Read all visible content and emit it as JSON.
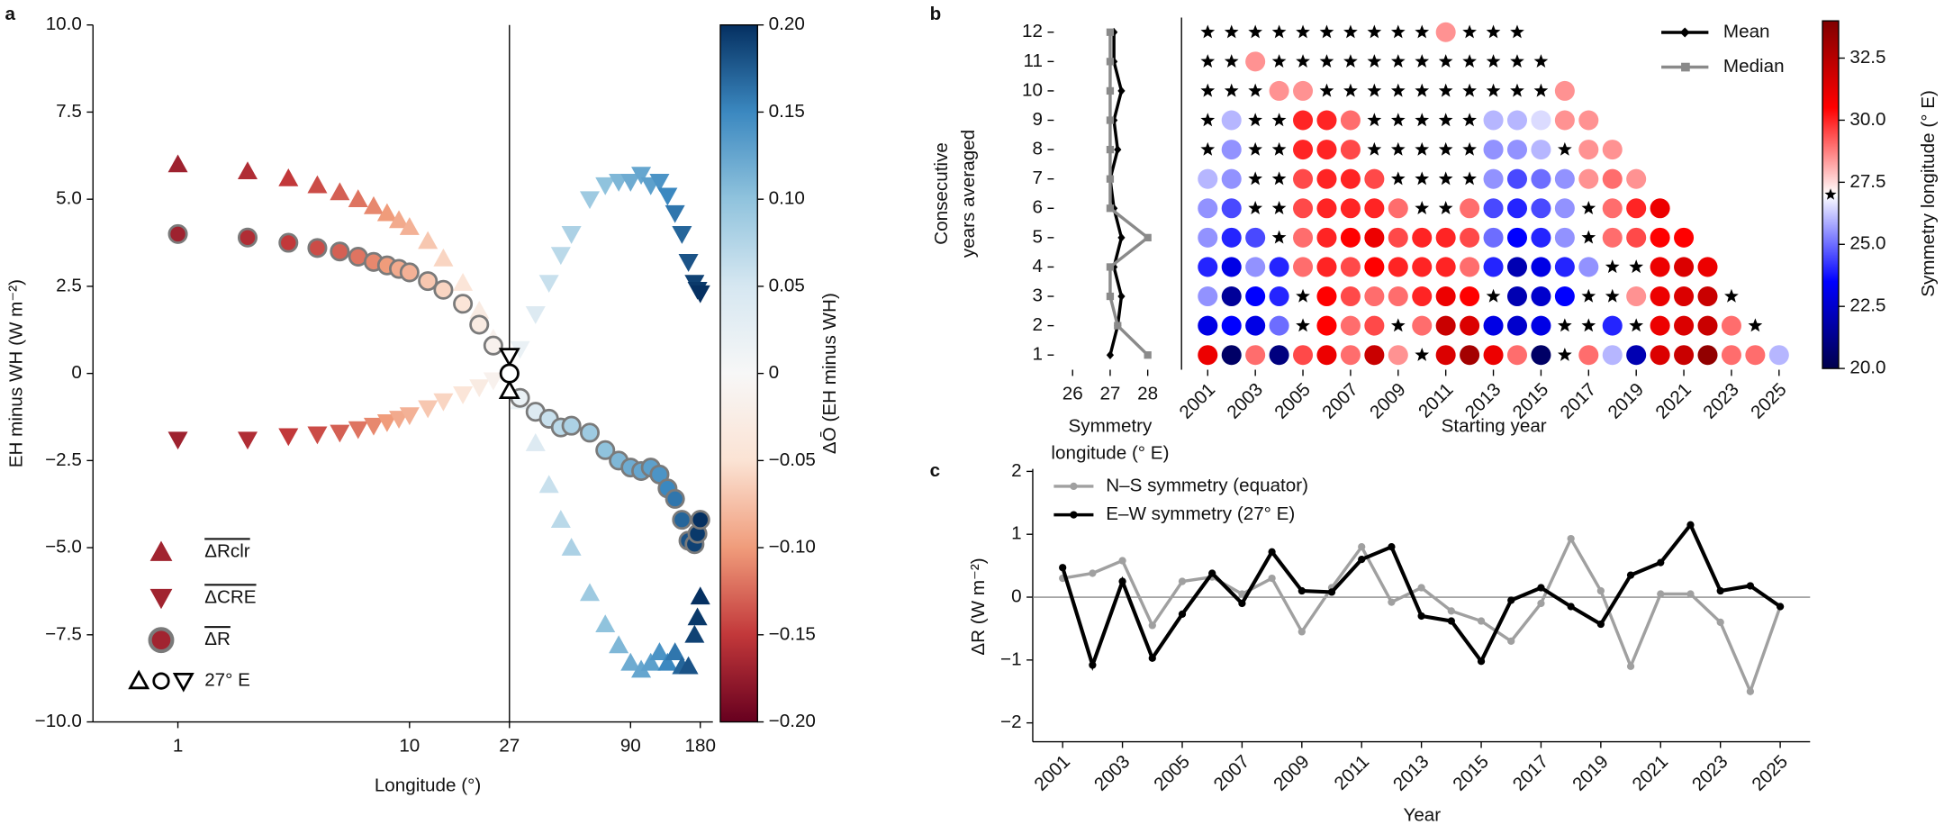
{
  "chart_data": [
    {
      "type": "scatter",
      "panel_label": "a",
      "xlabel": "Longitude (°)",
      "ylabel": "EH minus WH (W m⁻²)",
      "xscale": "log",
      "xlim": [
        0.43,
        204
      ],
      "xticks": [
        1,
        10,
        27,
        90,
        180
      ],
      "ylim": [
        -10,
        10
      ],
      "yticks": [
        {
          "value": 10,
          "label": "10.0"
        },
        7.5,
        {
          "value": 5,
          "label": "5.0"
        },
        2.5,
        0,
        {
          "value": -2.5,
          "label": "−2.5"
        },
        {
          "value": -5,
          "label": "−5.0"
        },
        {
          "value": -7.5,
          "label": "−7.5"
        },
        {
          "value": -10,
          "label": "−10.0"
        }
      ],
      "vline": 27,
      "x": [
        1,
        2,
        3,
        4,
        5,
        6,
        7,
        8,
        9,
        10,
        12,
        14,
        17,
        20,
        23,
        27,
        30,
        35,
        40,
        45,
        50,
        60,
        70,
        80,
        90,
        100,
        110,
        120,
        130,
        140,
        150,
        160,
        170,
        175,
        180
      ],
      "color_values": [
        -0.17,
        -0.16,
        -0.15,
        -0.14,
        -0.13,
        -0.12,
        -0.11,
        -0.1,
        -0.09,
        -0.085,
        -0.07,
        -0.06,
        -0.045,
        -0.03,
        -0.015,
        0,
        0.02,
        0.04,
        0.06,
        0.07,
        0.08,
        0.09,
        0.1,
        0.11,
        0.12,
        0.125,
        0.13,
        0.14,
        0.15,
        0.16,
        0.17,
        0.18,
        0.19,
        0.195,
        0.2
      ],
      "series": [
        {
          "name": "ΔRclr",
          "marker": "triangle-up",
          "values": [
            6.0,
            5.8,
            5.6,
            5.4,
            5.2,
            5.0,
            4.8,
            4.6,
            4.4,
            4.2,
            3.8,
            3.3,
            2.6,
            1.8,
            1.0,
            0,
            -0.8,
            -2.0,
            -3.2,
            -4.2,
            -5.0,
            -6.3,
            -7.2,
            -7.8,
            -8.3,
            -8.5,
            -8.3,
            -8.0,
            -8.3,
            -8.0,
            -8.4,
            -8.4,
            -7.5,
            -7.0,
            -6.4
          ]
        },
        {
          "name": "ΔCRE",
          "marker": "triangle-down",
          "values": [
            -1.9,
            -1.9,
            -1.8,
            -1.75,
            -1.7,
            -1.6,
            -1.5,
            -1.4,
            -1.3,
            -1.2,
            -1.0,
            -0.8,
            -0.6,
            -0.4,
            -0.2,
            0,
            0.7,
            1.7,
            2.6,
            3.4,
            4.0,
            5.0,
            5.4,
            5.5,
            5.5,
            5.7,
            5.4,
            5.5,
            5.1,
            4.6,
            4.0,
            3.2,
            2.6,
            2.4,
            2.3
          ]
        },
        {
          "name": "ΔR",
          "marker": "circle",
          "values": [
            4.0,
            3.9,
            3.75,
            3.6,
            3.5,
            3.35,
            3.2,
            3.1,
            3.0,
            2.9,
            2.65,
            2.4,
            2.0,
            1.4,
            0.8,
            0,
            -0.7,
            -1.1,
            -1.3,
            -1.55,
            -1.5,
            -1.7,
            -2.2,
            -2.5,
            -2.7,
            -2.8,
            -2.7,
            -2.9,
            -3.3,
            -3.6,
            -4.2,
            -4.8,
            -4.9,
            -4.6,
            -4.2
          ]
        }
      ],
      "reference": {
        "label": "27° E",
        "x": 27,
        "y": 0
      },
      "legend_position": "lower left",
      "colorbar": {
        "label": "ΔŌ (EH minus WH)",
        "lim": [
          -0.2,
          0.2
        ],
        "ticks": [
          {
            "value": 0.2,
            "label": "0.20"
          },
          0.15,
          {
            "value": 0.1,
            "label": "0.10"
          },
          0.05,
          0,
          {
            "value": -0.05,
            "label": "−0.05"
          },
          {
            "value": -0.1,
            "label": "−0.10"
          },
          {
            "value": -0.15,
            "label": "−0.15"
          },
          {
            "value": -0.2,
            "label": "−0.20"
          }
        ],
        "colormap": [
          "#67001f",
          "#c2383a",
          "#f09c7b",
          "#fbe3d4",
          "#f7f7f7",
          "#d6e7f1",
          "#90c3dd",
          "#3b88c0",
          "#053061"
        ]
      }
    },
    {
      "type": "profile",
      "panel_label": "b",
      "xlabel": [
        "Symmetry",
        "longitude (° E)"
      ],
      "ylabel": [
        "Consecutive",
        "years averaged"
      ],
      "xlim": [
        25.5,
        28.9
      ],
      "xticks": [
        26,
        27,
        28
      ],
      "ylim": [
        0.5,
        12.5
      ],
      "yticks": [
        1,
        2,
        3,
        4,
        5,
        6,
        7,
        8,
        9,
        10,
        11,
        12
      ],
      "y": [
        1,
        2,
        3,
        4,
        5,
        6,
        7,
        8,
        9,
        10,
        11,
        12
      ],
      "series": [
        {
          "name": "Mean",
          "color": "#000000",
          "marker": "diamond",
          "values": [
            27,
            27.2,
            27.3,
            27.1,
            27.3,
            27.1,
            27.0,
            27.2,
            27.1,
            27.3,
            27.1,
            27.1
          ]
        },
        {
          "name": "Median",
          "color": "#8a8a8a",
          "marker": "square",
          "values": [
            28,
            27.2,
            27,
            27,
            28,
            27,
            27,
            27,
            27,
            27,
            27,
            27
          ]
        }
      ],
      "legend_position": "upper right"
    },
    {
      "type": "dotmatrix",
      "xlabel": "Starting year",
      "xlim": [
        1999.9,
        2026.2
      ],
      "xticks": [
        2001,
        2003,
        2005,
        2007,
        2009,
        2011,
        2013,
        2015,
        2017,
        2019,
        2021,
        2023,
        2025
      ],
      "ylim": [
        0.5,
        12.5
      ],
      "x": [
        2001,
        2002,
        2003,
        2004,
        2005,
        2006,
        2007,
        2008,
        2009,
        2010,
        2011,
        2012,
        2013,
        2014,
        2015,
        2016,
        2017,
        2018,
        2019,
        2020,
        2021,
        2022,
        2023,
        2024,
        2025
      ],
      "y": [
        1,
        2,
        3,
        4,
        5,
        6,
        7,
        8,
        9,
        10,
        11,
        12
      ],
      "star_value": 27,
      "matrix": [
        [
          31,
          20.5,
          29,
          21,
          29.5,
          31,
          29,
          32,
          28.5,
          27,
          31.5,
          33,
          31,
          29,
          20.5,
          27,
          29,
          26,
          22,
          31.5,
          32,
          33.5,
          29,
          29,
          26
        ],
        [
          23,
          23.5,
          23,
          25,
          27,
          30.5,
          29,
          29.5,
          27,
          29,
          32,
          31.5,
          23,
          22.5,
          23,
          27,
          27,
          24,
          27,
          31,
          31.5,
          32,
          29,
          27,
          null
        ],
        [
          25.5,
          21.5,
          23.5,
          24,
          27,
          30.5,
          29.5,
          29,
          29,
          30,
          31,
          30.5,
          27,
          22,
          22.5,
          23.5,
          27,
          27,
          28.5,
          31,
          31.5,
          32,
          27,
          null,
          null
        ],
        [
          24,
          23,
          25.5,
          24,
          29,
          30,
          29.5,
          30.5,
          30,
          30,
          30,
          29,
          24,
          22,
          23,
          24,
          25.5,
          27,
          27,
          31,
          31.5,
          31,
          null,
          null,
          null
        ],
        [
          25.5,
          24,
          24.5,
          27,
          29,
          30,
          30.5,
          31,
          29.5,
          30,
          30,
          29.5,
          25,
          23.5,
          24,
          25.5,
          27,
          29,
          29.5,
          30.5,
          30.5,
          null,
          null,
          null,
          null
        ],
        [
          25.5,
          24.5,
          27,
          27,
          29.5,
          30,
          30,
          30,
          29,
          27,
          27,
          29,
          24.5,
          24,
          24.5,
          25.5,
          27,
          29,
          30,
          31,
          null,
          null,
          null,
          null,
          null
        ],
        [
          26,
          25.5,
          27,
          27,
          29.5,
          30,
          30,
          29.5,
          27,
          27,
          27,
          27,
          25.5,
          24.5,
          25,
          25.5,
          28.5,
          29,
          28.5,
          null,
          null,
          null,
          null,
          null,
          null
        ],
        [
          27,
          25.5,
          27,
          27,
          30,
          30,
          29.5,
          27,
          27,
          27,
          27,
          27,
          25.5,
          25.5,
          26,
          27,
          28.5,
          28.5,
          null,
          null,
          null,
          null,
          null,
          null,
          null
        ],
        [
          27,
          26,
          27,
          27,
          30,
          30,
          29,
          27,
          27,
          27,
          27,
          27,
          26,
          26,
          26.5,
          28.5,
          28.5,
          null,
          null,
          null,
          null,
          null,
          null,
          null,
          null
        ],
        [
          27,
          27,
          27,
          28.5,
          28.5,
          27,
          27,
          27,
          27,
          27,
          27,
          27,
          27,
          27,
          27,
          28.5,
          null,
          null,
          null,
          null,
          null,
          null,
          null,
          null,
          null
        ],
        [
          27,
          27,
          28.5,
          27,
          27,
          27,
          27,
          27,
          27,
          27,
          27,
          27,
          27,
          27,
          27,
          null,
          null,
          null,
          null,
          null,
          null,
          null,
          null,
          null,
          null
        ],
        [
          27,
          27,
          27,
          27,
          27,
          27,
          27,
          27,
          27,
          27,
          28.5,
          27,
          27,
          27,
          null,
          null,
          null,
          null,
          null,
          null,
          null,
          null,
          null,
          null,
          null
        ]
      ],
      "colorbar": {
        "label": "Symmetry longitude (° E)",
        "lim": [
          20,
          34
        ],
        "ticks": [
          {
            "value": 20,
            "label": "20.0"
          },
          22.5,
          {
            "value": 25,
            "label": "25.0"
          },
          27.5,
          {
            "value": 30,
            "label": "30.0"
          },
          32.5
        ],
        "colormap": [
          "#00004c",
          "#0000ff",
          "#ffffff",
          "#ff0000",
          "#800000"
        ]
      }
    },
    {
      "type": "line",
      "panel_label": "c",
      "xlabel": "Year",
      "ylabel": "ΔR (W m⁻²)",
      "xlim": [
        2000,
        2026
      ],
      "xticks": [
        2001,
        2003,
        2005,
        2007,
        2009,
        2011,
        2013,
        2015,
        2017,
        2019,
        2021,
        2023,
        2025
      ],
      "ylim": [
        -2.3,
        2
      ],
      "yticks": [
        {
          "value": -2,
          "label": "−2"
        },
        {
          "value": -1,
          "label": "−1"
        },
        0,
        1,
        2
      ],
      "zero_line": true,
      "legend_position": "upper left",
      "x": [
        2001,
        2002,
        2003,
        2004,
        2005,
        2006,
        2007,
        2008,
        2009,
        2010,
        2011,
        2012,
        2013,
        2014,
        2015,
        2016,
        2017,
        2018,
        2019,
        2020,
        2021,
        2022,
        2023,
        2024,
        2025
      ],
      "series": [
        {
          "name": "N–S symmetry (equator)",
          "color": "#a0a0a0",
          "values": [
            0.3,
            0.38,
            0.58,
            -0.45,
            0.25,
            0.32,
            0.05,
            0.3,
            -0.55,
            0.15,
            0.8,
            -0.08,
            0.15,
            -0.22,
            -0.38,
            -0.7,
            -0.1,
            0.93,
            0.1,
            -1.1,
            0.05,
            0.05,
            -0.4,
            -1.5,
            -0.15
          ]
        },
        {
          "name": "E–W symmetry (27° E)",
          "color": "#000000",
          "values": [
            0.47,
            -1.08,
            0.25,
            -0.97,
            -0.27,
            0.38,
            -0.1,
            0.72,
            0.1,
            0.08,
            0.6,
            0.8,
            -0.3,
            -0.38,
            -1.02,
            -0.05,
            0.15,
            -0.15,
            -0.43,
            0.35,
            0.55,
            1.15,
            0.1,
            0.18,
            -0.15
          ]
        }
      ]
    }
  ]
}
